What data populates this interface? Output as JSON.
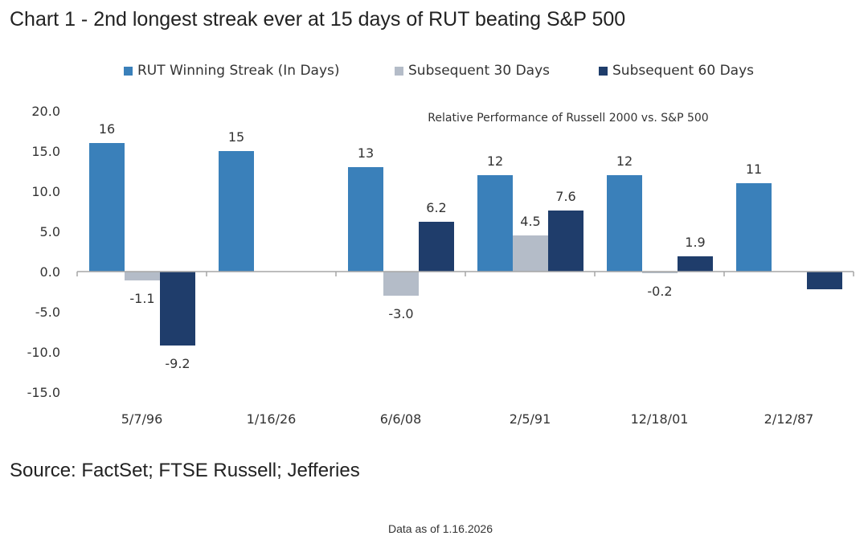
{
  "page": {
    "title": "Chart 1 - 2nd longest streak ever at 15 days of RUT beating S&P 500",
    "source": "Source: FactSet; FTSE Russell; Jefferies",
    "data_as_of": "Data as of 1.16.2026"
  },
  "chart_data": {
    "type": "bar",
    "title": "Relative Performance of Russell 2000 vs. S&P 500",
    "xlabel": "",
    "ylabel": "",
    "categories": [
      "5/7/96",
      "1/16/26",
      "6/6/08",
      "2/5/91",
      "12/18/01",
      "2/12/87"
    ],
    "ylim": [
      -15,
      20
    ],
    "yticks": [
      20,
      15,
      10,
      5,
      0,
      -5,
      -10,
      -15
    ],
    "ytick_labels": [
      "20.0",
      "15.0",
      "10.0",
      "5.0",
      "0.0",
      "-5.0",
      "-10.0",
      "-15.0"
    ],
    "grid": false,
    "legend_position": "top-center",
    "series": [
      {
        "name": "RUT Winning Streak (In Days)",
        "color": "#3a80ba",
        "values": [
          16,
          15,
          13,
          12,
          12,
          11
        ],
        "labels": [
          "16",
          "15",
          "13",
          "12",
          "12",
          "11"
        ]
      },
      {
        "name": "Subsequent 30 Days",
        "color": "#b4bcc8",
        "values": [
          -1.1,
          null,
          -3.0,
          4.5,
          -0.2,
          null
        ],
        "labels": [
          "-1.1",
          null,
          "-3.0",
          "4.5",
          "-0.2",
          null
        ]
      },
      {
        "name": "Subsequent 60 Days",
        "color": "#1f3d6b",
        "values": [
          -9.2,
          null,
          6.2,
          7.6,
          1.9,
          -2.2
        ],
        "labels": [
          "-9.2",
          null,
          "6.2",
          "7.6",
          "1.9",
          null
        ]
      }
    ]
  }
}
